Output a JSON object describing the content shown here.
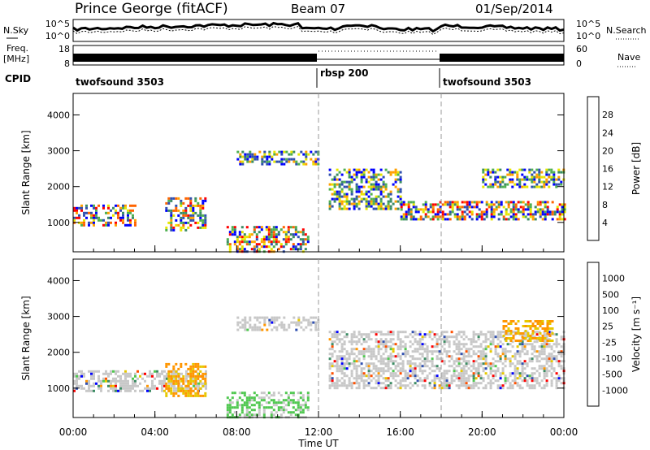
{
  "header": {
    "station": "Prince George (fitACF)",
    "beam": "Beam 07",
    "date": "01/Sep/2014"
  },
  "noise_panel": {
    "left_label": "N.Sky",
    "right_label": "N.Search",
    "left_ticks": [
      "10^5",
      "10^0"
    ],
    "right_ticks": [
      "10^5",
      "10^0"
    ]
  },
  "freq_panel": {
    "left_label": "Freq.",
    "left_unit": "[MHz]",
    "right_label": "Nave",
    "left_ticks": [
      "18",
      "8"
    ],
    "right_ticks": [
      "60",
      "0"
    ]
  },
  "cpid": {
    "label": "CPID",
    "segments": [
      {
        "name": "twofsound 3503",
        "start_hr": 0,
        "end_hr": 12
      },
      {
        "name": "rbsp 200",
        "start_hr": 12,
        "end_hr": 18
      },
      {
        "name": "twofsound 3503",
        "start_hr": 18,
        "end_hr": 24
      }
    ]
  },
  "x_axis": {
    "label": "Time UT",
    "ticks": [
      "00:00",
      "04:00",
      "08:00",
      "12:00",
      "16:00",
      "20:00",
      "00:00"
    ]
  },
  "chart_data": [
    {
      "type": "heatmap",
      "title": "",
      "ylabel": "Slant Range [km]",
      "yticks": [
        1000,
        2000,
        3000,
        4000
      ],
      "ylim": [
        180,
        4600
      ],
      "xlim": [
        0,
        24
      ],
      "colorbar": {
        "label": "Power [dB]",
        "ticks": [
          "4",
          "8",
          "12",
          "16",
          "20",
          "24",
          "28"
        ],
        "colors": [
          "#0000ff",
          "#3050b0",
          "#3c8c64",
          "#50b050",
          "#e6e600",
          "#ffa000",
          "#ff6400",
          "#ff0000"
        ]
      },
      "echo_bands": [
        {
          "t0": 0.0,
          "t1": 3.0,
          "r0": 900,
          "r1": 1500,
          "level": "high"
        },
        {
          "t0": 4.5,
          "t1": 6.5,
          "r0": 800,
          "r1": 1700,
          "level": "high"
        },
        {
          "t0": 7.5,
          "t1": 11.5,
          "r0": 200,
          "r1": 900,
          "level": "high"
        },
        {
          "t0": 8.0,
          "t1": 12.0,
          "r0": 2600,
          "r1": 3000,
          "level": "mid"
        },
        {
          "t0": 12.5,
          "t1": 16.0,
          "r0": 1400,
          "r1": 2500,
          "level": "mid"
        },
        {
          "t0": 16.0,
          "t1": 24.0,
          "r0": 1100,
          "r1": 1600,
          "level": "high"
        },
        {
          "t0": 20.0,
          "t1": 24.0,
          "r0": 2000,
          "r1": 2500,
          "level": "mid"
        }
      ]
    },
    {
      "type": "heatmap",
      "title": "",
      "ylabel": "Slant Range [km]",
      "yticks": [
        1000,
        2000,
        3000,
        4000
      ],
      "ylim": [
        180,
        4600
      ],
      "xlim": [
        0,
        24
      ],
      "colorbar": {
        "label": "Velocity [m s⁻¹]",
        "ticks": [
          "1000",
          "500",
          "100",
          "25",
          "-25",
          "-100",
          "-500",
          "-1000"
        ],
        "colors": [
          "#0000ff",
          "#3050b0",
          "#3c8c64",
          "#50c850",
          "#c8c8c8",
          "#e6c800",
          "#ff9600",
          "#ff5000",
          "#ff0000"
        ]
      },
      "echo_bands": [
        {
          "t0": 0.0,
          "t1": 6.5,
          "r0": 900,
          "r1": 1500,
          "level": "gray"
        },
        {
          "t0": 4.5,
          "t1": 6.5,
          "r0": 800,
          "r1": 1700,
          "level": "orange"
        },
        {
          "t0": 7.5,
          "t1": 11.5,
          "r0": 200,
          "r1": 900,
          "level": "green"
        },
        {
          "t0": 8.0,
          "t1": 12.0,
          "r0": 2600,
          "r1": 3000,
          "level": "gray"
        },
        {
          "t0": 12.5,
          "t1": 24.0,
          "r0": 1000,
          "r1": 2600,
          "level": "gray"
        },
        {
          "t0": 21.0,
          "t1": 23.5,
          "r0": 2300,
          "r1": 2900,
          "level": "orange"
        }
      ]
    }
  ]
}
